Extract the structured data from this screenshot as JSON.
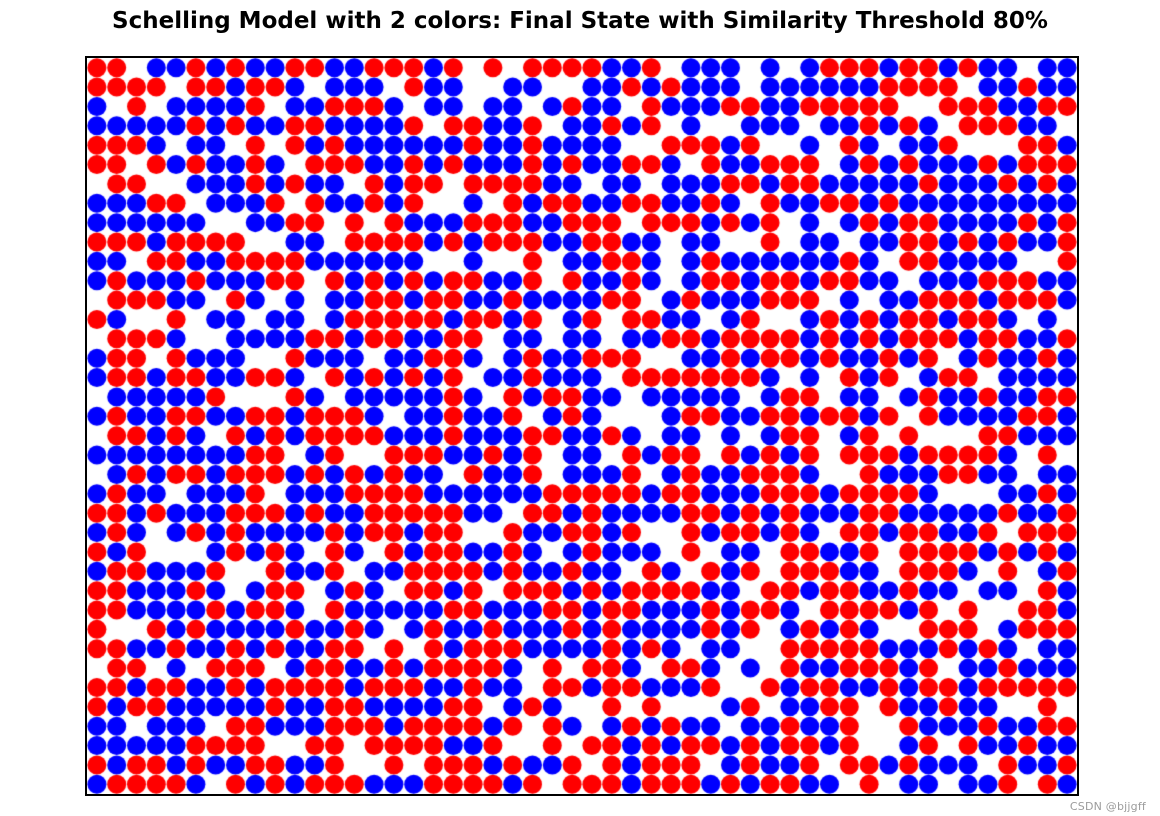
{
  "chart_data": {
    "type": "scatter",
    "title": "Schelling Model with 2 colors: Final State with Similarity Threshold 80%",
    "xlabel": "",
    "ylabel": "",
    "axes": {
      "ticks_visible": false,
      "frame": true,
      "frame_color": "#000000"
    },
    "legend": "none",
    "grid": {
      "rows": 38,
      "cols": 50
    },
    "marker": {
      "shape": "circle",
      "radius_px": 9.5
    },
    "series": [
      {
        "name": "red agents",
        "color": "#ff0000",
        "fraction": 0.42
      },
      {
        "name": "blue agents",
        "color": "#0000ff",
        "fraction": 0.42
      }
    ],
    "empty_fraction": 0.16,
    "pattern": "random mixed occupancy (no segregation clusters)",
    "seed": 7
  },
  "watermark": {
    "text": "CSDN @bjjgff",
    "color": "#9b9b9b"
  }
}
